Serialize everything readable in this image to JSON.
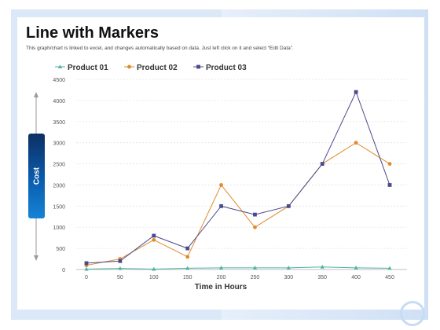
{
  "title": "Line with Markers",
  "subtitle": "This graph/chart is linked to excel, and changes automatically based on data. Just left click on it and select “Edit Data”.",
  "chart_data": {
    "type": "line",
    "x": [
      0,
      50,
      100,
      150,
      200,
      250,
      300,
      350,
      400,
      450
    ],
    "series": [
      {
        "name": "Product 01",
        "color": "#4fb3a0",
        "marker": "triangle",
        "values": [
          10,
          25,
          10,
          30,
          40,
          40,
          40,
          60,
          40,
          30
        ]
      },
      {
        "name": "Product 02",
        "color": "#e08a2c",
        "marker": "circle",
        "values": [
          100,
          250,
          700,
          300,
          2000,
          1000,
          1500,
          2500,
          3000,
          2500
        ]
      },
      {
        "name": "Product 03",
        "color": "#4b4a8c",
        "marker": "square",
        "values": [
          150,
          200,
          800,
          500,
          1500,
          1300,
          1500,
          2500,
          4200,
          2000
        ]
      }
    ],
    "xlabel": "Time in Hours",
    "ylabel": "Cost",
    "ylim": [
      0,
      4500
    ],
    "yticks": [
      0,
      500,
      1000,
      1500,
      2000,
      2500,
      3000,
      3500,
      4000,
      4500
    ],
    "xticks": [
      0,
      50,
      100,
      150,
      200,
      250,
      300,
      350,
      400,
      450
    ],
    "grid": true,
    "legend": "top-left"
  }
}
